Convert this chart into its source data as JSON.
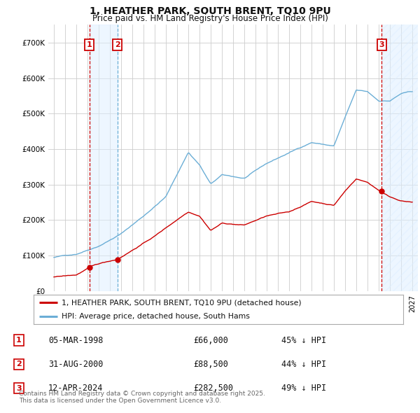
{
  "title_line1": "1, HEATHER PARK, SOUTH BRENT, TQ10 9PU",
  "title_line2": "Price paid vs. HM Land Registry's House Price Index (HPI)",
  "ylim": [
    0,
    750000
  ],
  "yticks": [
    0,
    100000,
    200000,
    300000,
    400000,
    500000,
    600000,
    700000
  ],
  "ytick_labels": [
    "£0",
    "£100K",
    "£200K",
    "£300K",
    "£400K",
    "£500K",
    "£600K",
    "£700K"
  ],
  "xlim_start": 1994.5,
  "xlim_end": 2027.5,
  "hpi_color": "#6baed6",
  "price_color": "#cc0000",
  "background_color": "#ffffff",
  "grid_color": "#cccccc",
  "sale_dates": [
    1998.17,
    2000.66,
    2024.28
  ],
  "sale_prices": [
    66000,
    88500,
    282500
  ],
  "sale_labels": [
    "1",
    "2",
    "3"
  ],
  "legend_line1": "1, HEATHER PARK, SOUTH BRENT, TQ10 9PU (detached house)",
  "legend_line2": "HPI: Average price, detached house, South Hams",
  "table_rows": [
    [
      "1",
      "05-MAR-1998",
      "£66,000",
      "45% ↓ HPI"
    ],
    [
      "2",
      "31-AUG-2000",
      "£88,500",
      "44% ↓ HPI"
    ],
    [
      "3",
      "12-APR-2024",
      "£282,500",
      "49% ↓ HPI"
    ]
  ],
  "footnote": "Contains HM Land Registry data © Crown copyright and database right 2025.\nThis data is licensed under the Open Government Licence v3.0.",
  "shaded_color": "#ddeeff",
  "shaded_alpha": 0.5,
  "hatch_color": "#ddeeff"
}
